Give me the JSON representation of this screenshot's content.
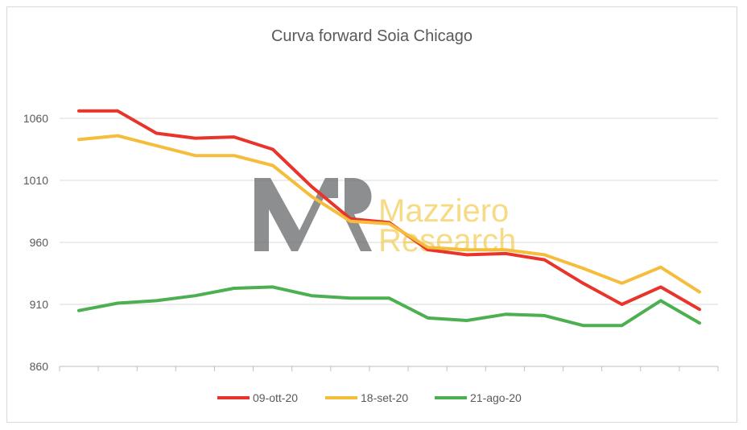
{
  "chart_data": {
    "type": "line",
    "title": "Curva forward Soia Chicago",
    "xlabel": "",
    "ylabel": "",
    "ylim": [
      860,
      1070
    ],
    "yticks": [
      860,
      910,
      960,
      1010,
      1060
    ],
    "grid": true,
    "legend_position": "bottom",
    "x": [
      1,
      2,
      3,
      4,
      5,
      6,
      7,
      8,
      9,
      10,
      11,
      12,
      13,
      14,
      15,
      16,
      17
    ],
    "series": [
      {
        "name": "09-ott-20",
        "color": "#e8342a",
        "values": [
          1066,
          1066,
          1048,
          1044,
          1045,
          1035,
          1005,
          979,
          976,
          954,
          950,
          951,
          946,
          927,
          910,
          924,
          906
        ]
      },
      {
        "name": "18-set-20",
        "color": "#f5bd3c",
        "values": [
          1043,
          1046,
          1038,
          1030,
          1030,
          1022,
          997,
          977,
          975,
          956,
          954,
          954,
          950,
          939,
          927,
          940,
          920
        ]
      },
      {
        "name": "21-ago-20",
        "color": "#4caf50",
        "values": [
          905,
          911,
          913,
          917,
          923,
          924,
          917,
          915,
          915,
          899,
          897,
          902,
          901,
          893,
          893,
          913,
          895
        ]
      }
    ]
  },
  "watermark": {
    "logo_text": "MR",
    "line1": "Mazziero",
    "line2": "Research",
    "logo_color": "#6d6e71",
    "text_color": "#f2c94c"
  }
}
